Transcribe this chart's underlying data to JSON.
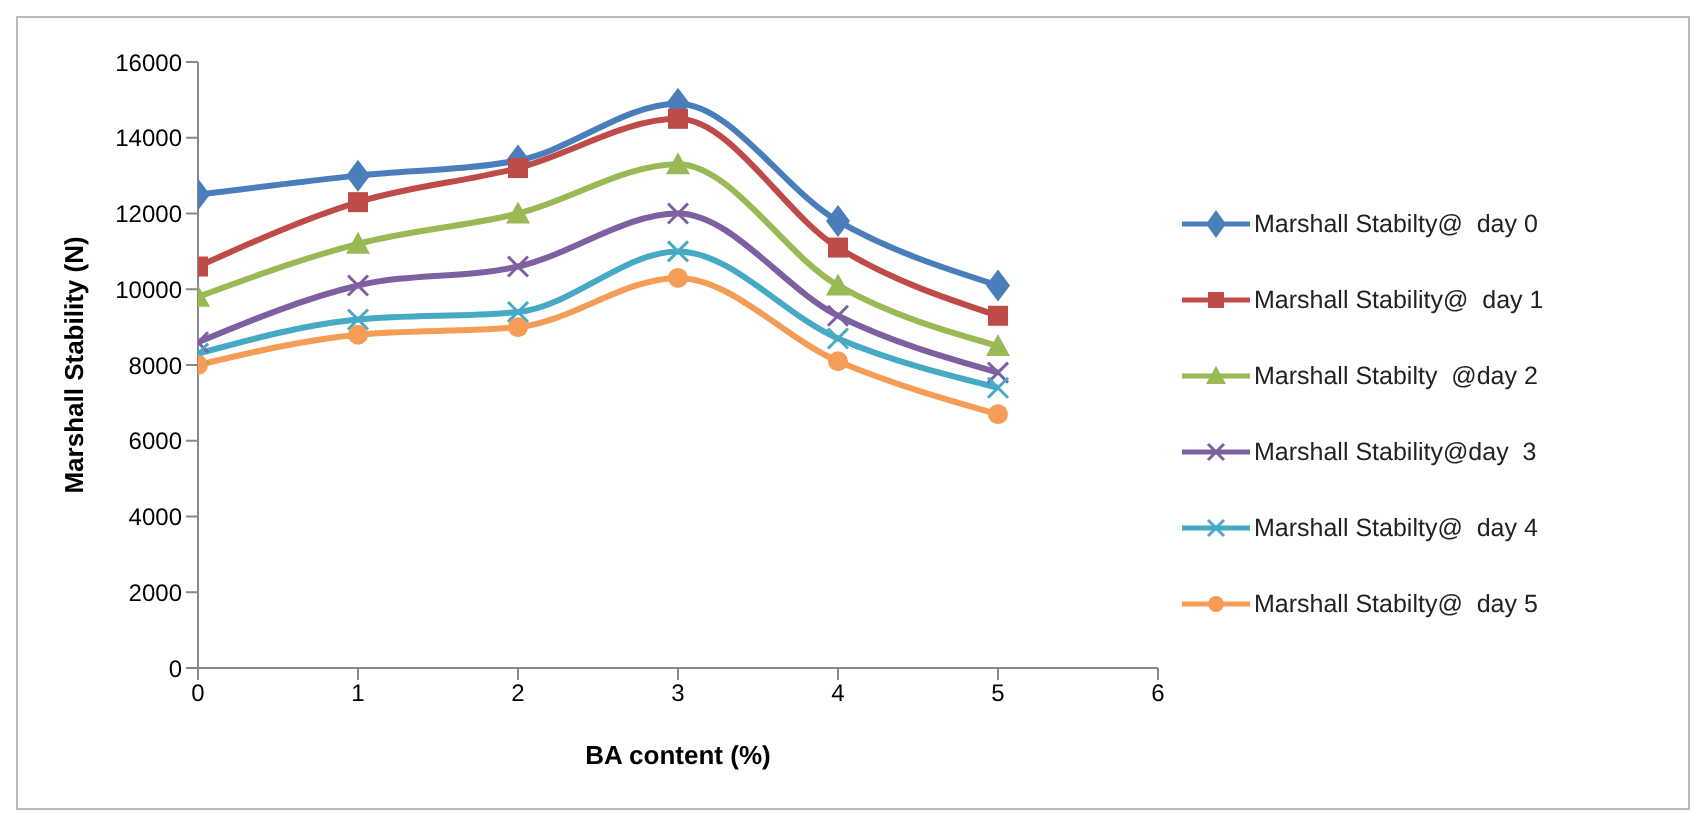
{
  "chart_data": {
    "type": "line",
    "xlabel": "BA content (%)",
    "ylabel": "Marshall Stability (N)",
    "x": [
      0,
      1,
      2,
      3,
      4,
      5
    ],
    "series": [
      {
        "name": "Marshall Stabilty@  day 0",
        "color": "#4a7ebb",
        "marker": "diamond",
        "values": [
          12500,
          13000,
          13400,
          14900,
          11800,
          10100
        ]
      },
      {
        "name": "Marshall Stability@  day 1",
        "color": "#be4b48",
        "marker": "square",
        "values": [
          10600,
          12300,
          13200,
          14500,
          11100,
          9300
        ]
      },
      {
        "name": "Marshall Stabilty  @day 2",
        "color": "#98b954",
        "marker": "triangle",
        "values": [
          9800,
          11200,
          12000,
          13300,
          10100,
          8500
        ]
      },
      {
        "name": "Marshall Stability@day  3",
        "color": "#7d60a0",
        "marker": "cross",
        "values": [
          8600,
          10100,
          10600,
          12000,
          9300,
          7800
        ]
      },
      {
        "name": "Marshall Stabilty@  day 4",
        "color": "#46aac5",
        "marker": "cross",
        "values": [
          8300,
          9200,
          9400,
          11000,
          8700,
          7400
        ]
      },
      {
        "name": "Marshall Stabilty@  day 5",
        "color": "#f59d56",
        "marker": "circle",
        "values": [
          8000,
          8800,
          9000,
          10300,
          8100,
          6700
        ]
      }
    ],
    "xlim": [
      0,
      6
    ],
    "xticks": [
      0,
      1,
      2,
      3,
      4,
      5,
      6
    ],
    "ylim": [
      0,
      16000
    ],
    "yticks": [
      0,
      2000,
      4000,
      6000,
      8000,
      10000,
      12000,
      14000,
      16000
    ],
    "grid": false,
    "legend": "right",
    "line_style": "solid"
  }
}
